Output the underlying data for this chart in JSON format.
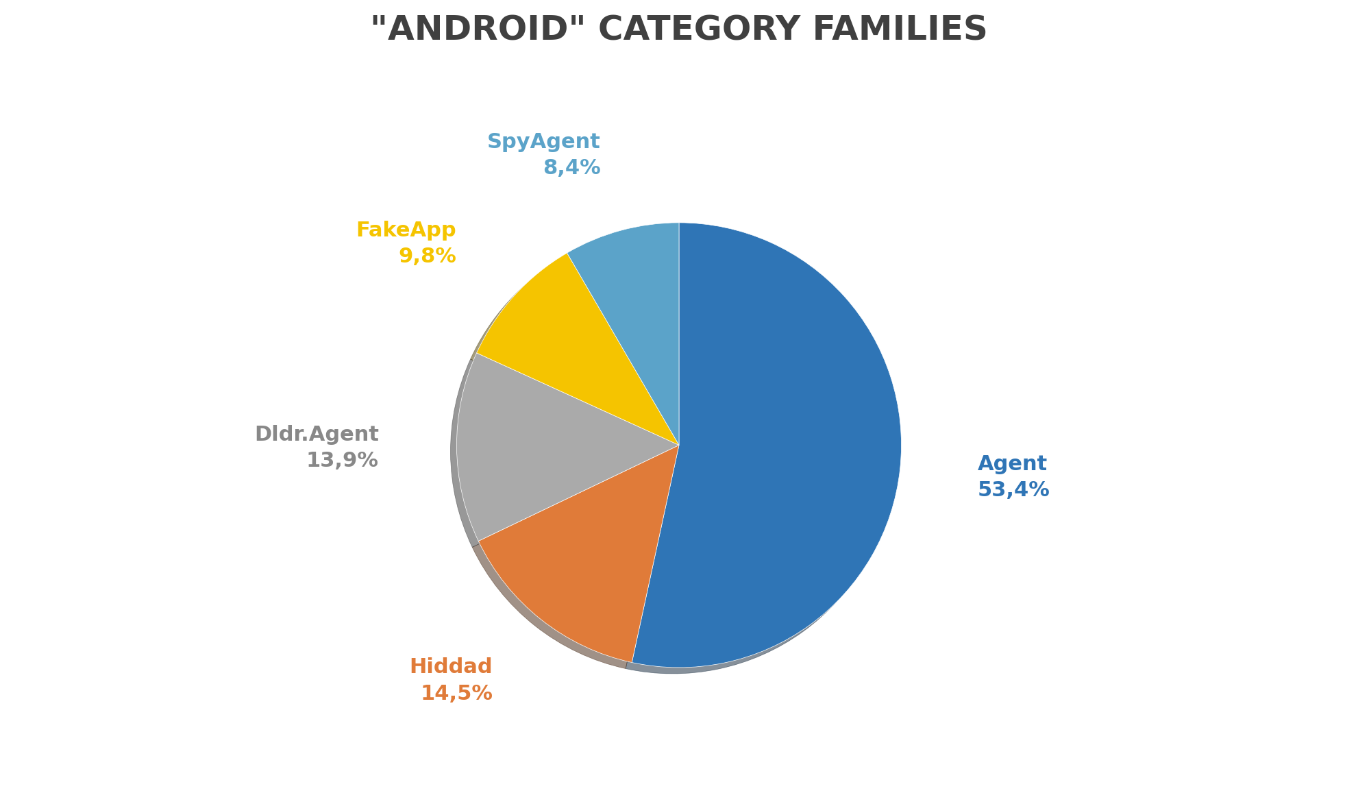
{
  "title": "\"ANDROID\" CATEGORY FAMILIES",
  "slices": [
    {
      "label": "Agent",
      "pct_display": "53,4%",
      "value": 53.4,
      "color": "#2F75B6"
    },
    {
      "label": "Hiddad",
      "pct_display": "14,5%",
      "value": 14.5,
      "color": "#E07B39"
    },
    {
      "label": "Dldr.Agent",
      "pct_display": "13,9%",
      "value": 13.9,
      "color": "#AAAAAA"
    },
    {
      "label": "FakeApp",
      "pct_display": "9,8%",
      "value": 9.8,
      "color": "#F5C400"
    },
    {
      "label": "SpyAgent",
      "pct_display": "8,4%",
      "value": 8.4,
      "color": "#5BA3C9"
    }
  ],
  "label_colors": {
    "Agent": "#2F75B6",
    "Hiddad": "#E07B39",
    "Dldr.Agent": "#888888",
    "FakeApp": "#F5C400",
    "SpyAgent": "#5BA3C9"
  },
  "title_fontsize": 36,
  "label_fontsize": 22,
  "background_color": "#FFFFFF",
  "startangle": 90
}
